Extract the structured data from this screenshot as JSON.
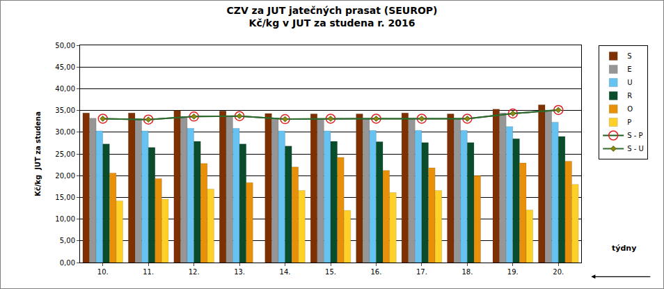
{
  "chart_data": {
    "type": "bar",
    "title": "CZV za JUT jatečných prasat (SEUROP)",
    "subtitle": "Kč/kg v JUT za studena r. 2016",
    "y_label": "Kč/kg  JUT za studena",
    "x_label": "týdny",
    "categories": [
      "10.",
      "11.",
      "12.",
      "13.",
      "14.",
      "15.",
      "16.",
      "17.",
      "18.",
      "19.",
      "20."
    ],
    "series": [
      {
        "name": "S",
        "type": "bar",
        "color": "#7f3000",
        "values": [
          34.4,
          34.4,
          35.0,
          34.9,
          34.3,
          34.2,
          34.2,
          34.4,
          34.2,
          35.3,
          36.3
        ]
      },
      {
        "name": "E",
        "type": "bar",
        "color": "#969696",
        "values": [
          33.2,
          33.1,
          33.6,
          33.7,
          33.1,
          33.1,
          33.1,
          33.2,
          33.1,
          34.4,
          35.1
        ]
      },
      {
        "name": "U",
        "type": "bar",
        "color": "#66c2f0",
        "values": [
          30.3,
          30.3,
          30.9,
          30.9,
          30.3,
          30.3,
          30.4,
          30.4,
          30.4,
          31.3,
          32.3
        ]
      },
      {
        "name": "R",
        "type": "bar",
        "color": "#0a4d2c",
        "values": [
          27.3,
          26.5,
          27.9,
          27.3,
          26.8,
          27.9,
          27.8,
          27.6,
          27.6,
          28.5,
          29.0
        ]
      },
      {
        "name": "O",
        "type": "bar",
        "color": "#e8900a",
        "values": [
          20.6,
          19.3,
          22.8,
          18.4,
          22.0,
          24.2,
          21.2,
          21.8,
          20.0,
          22.9,
          23.3
        ]
      },
      {
        "name": "P",
        "type": "bar",
        "color": "#ffd028",
        "values": [
          14.2,
          14.6,
          16.9,
          null,
          16.6,
          12.0,
          16.1,
          16.6,
          null,
          12.1,
          18.0
        ]
      },
      {
        "name": "S - P",
        "type": "line",
        "color": "#1e5a1e",
        "marker": "circle-open",
        "line_style": "solid",
        "values": [
          33.1,
          32.9,
          33.6,
          33.7,
          33.0,
          33.1,
          33.1,
          33.1,
          33.1,
          34.3,
          35.1
        ]
      },
      {
        "name": "S - U",
        "type": "line",
        "color": "#2f6b2f",
        "marker": "diamond",
        "line_style": "solid",
        "values": [
          33.1,
          32.9,
          33.6,
          33.7,
          33.0,
          33.1,
          33.1,
          33.1,
          33.1,
          34.3,
          35.1
        ]
      }
    ],
    "ylim": [
      0,
      50
    ],
    "yticks": [
      {
        "value": 0,
        "label": "0,00"
      },
      {
        "value": 5,
        "label": "5,00"
      },
      {
        "value": 10,
        "label": "10,00"
      },
      {
        "value": 15,
        "label": "15,00"
      },
      {
        "value": 20,
        "label": "20,00"
      },
      {
        "value": 25,
        "label": "25,00"
      },
      {
        "value": 30,
        "label": "30,00"
      },
      {
        "value": 35,
        "label": "35,00"
      },
      {
        "value": 40,
        "label": "40,00"
      },
      {
        "value": 45,
        "label": "45,00"
      },
      {
        "value": 50,
        "label": "50,00"
      }
    ],
    "grid": true,
    "legend": "right"
  }
}
